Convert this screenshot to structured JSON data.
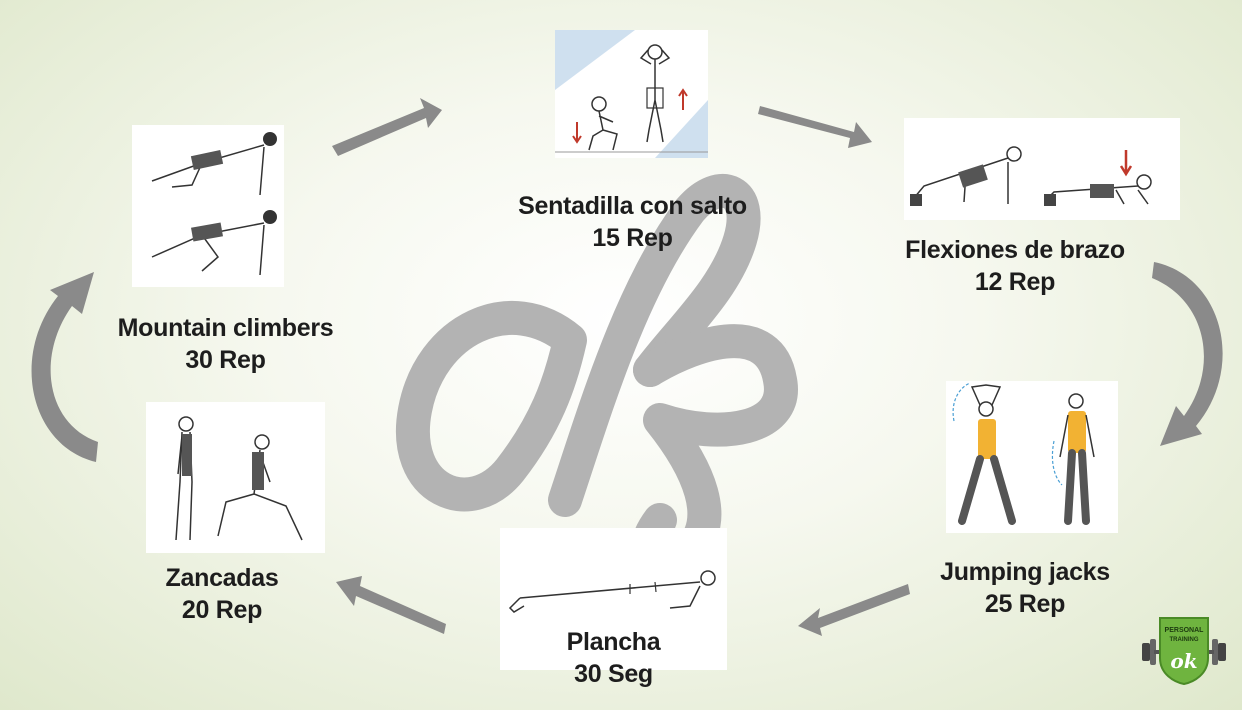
{
  "exercises": {
    "sentadilla": {
      "name": "Sentadilla con salto",
      "reps": "15 Rep"
    },
    "flexiones": {
      "name": "Flexiones de brazo",
      "reps": "12 Rep"
    },
    "jumping": {
      "name": "Jumping jacks",
      "reps": "25 Rep"
    },
    "plancha": {
      "name": "Plancha",
      "reps": "30 Seg"
    },
    "zancadas": {
      "name": "Zancadas",
      "reps": "20 Rep"
    },
    "mountain": {
      "name": "Mountain climbers",
      "reps": "30 Rep"
    }
  },
  "logo": {
    "text_top": "PERSONAL",
    "text_mid": "TRAINING",
    "mark": "ok"
  },
  "watermark": "ok",
  "colors": {
    "arrow": "#8a8a8a",
    "watermark": "#b8b8b8",
    "logo_green": "#6fb43f",
    "shirt_yellow": "#f2b233",
    "down_arrow": "#c0392b"
  }
}
